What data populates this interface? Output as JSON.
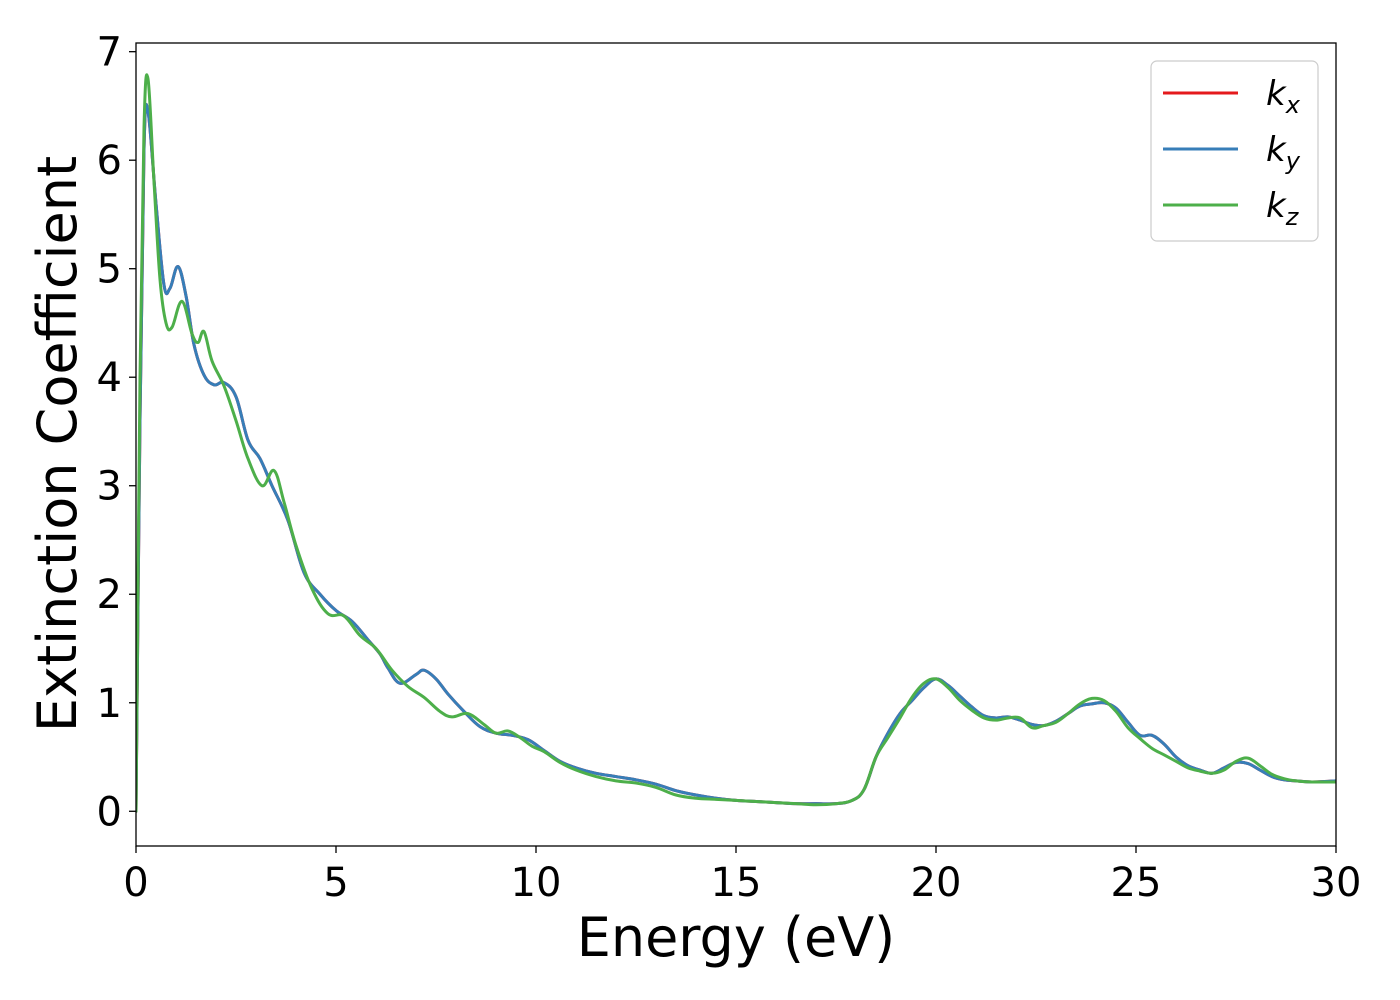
{
  "chart_data": {
    "type": "line",
    "xlabel": "Energy (eV)",
    "ylabel": "Extinction Coefficient",
    "xlim": [
      0,
      30
    ],
    "ylim": [
      -0.32,
      7.08
    ],
    "xticks": [
      "0",
      "5",
      "10",
      "15",
      "20",
      "25",
      "30"
    ],
    "yticks": [
      "0",
      "1",
      "2",
      "3",
      "4",
      "5",
      "6",
      "7"
    ],
    "grid": false,
    "legend_position": "top-right",
    "series": [
      {
        "name": "k_x",
        "legend_base": "k",
        "legend_sub": "x",
        "color": "#e41a1c",
        "x": [
          0.0,
          0.1,
          0.2,
          0.3,
          0.5,
          0.7,
          0.85,
          1.05,
          1.25,
          1.45,
          1.7,
          1.95,
          2.2,
          2.5,
          2.8,
          3.1,
          3.4,
          3.8,
          4.2,
          4.6,
          5.0,
          5.4,
          5.8,
          6.1,
          6.3,
          6.6,
          7.0,
          7.2,
          7.5,
          7.8,
          8.2,
          8.6,
          9.0,
          9.4,
          9.8,
          10.2,
          10.6,
          11.0,
          11.5,
          12.0,
          12.5,
          13.0,
          13.5,
          14.0,
          14.5,
          15.0,
          15.5,
          16.0,
          16.5,
          17.0,
          17.5,
          17.9,
          18.2,
          18.5,
          18.8,
          19.1,
          19.4,
          19.7,
          20.0,
          20.3,
          20.6,
          20.9,
          21.2,
          21.5,
          21.8,
          22.1,
          22.4,
          22.7,
          23.0,
          23.3,
          23.6,
          23.9,
          24.2,
          24.5,
          24.8,
          25.1,
          25.4,
          25.7,
          26.0,
          26.3,
          26.6,
          26.9,
          27.2,
          27.5,
          27.8,
          28.1,
          28.4,
          28.7,
          29.0,
          29.4,
          30.0
        ],
        "y": [
          0.0,
          3.6,
          6.1,
          6.45,
          5.6,
          4.85,
          4.82,
          5.02,
          4.75,
          4.3,
          4.02,
          3.93,
          3.95,
          3.82,
          3.42,
          3.25,
          3.0,
          2.68,
          2.2,
          2.0,
          1.85,
          1.75,
          1.58,
          1.45,
          1.32,
          1.18,
          1.26,
          1.3,
          1.22,
          1.08,
          0.92,
          0.78,
          0.72,
          0.7,
          0.66,
          0.56,
          0.46,
          0.4,
          0.35,
          0.32,
          0.29,
          0.25,
          0.19,
          0.15,
          0.12,
          0.1,
          0.09,
          0.08,
          0.07,
          0.07,
          0.07,
          0.1,
          0.2,
          0.5,
          0.72,
          0.9,
          1.02,
          1.14,
          1.22,
          1.16,
          1.06,
          0.96,
          0.88,
          0.86,
          0.87,
          0.84,
          0.8,
          0.79,
          0.83,
          0.9,
          0.97,
          0.99,
          1.0,
          0.95,
          0.82,
          0.7,
          0.7,
          0.62,
          0.5,
          0.42,
          0.38,
          0.35,
          0.4,
          0.45,
          0.44,
          0.38,
          0.32,
          0.29,
          0.28,
          0.27,
          0.28
        ]
      },
      {
        "name": "k_y",
        "legend_base": "k",
        "legend_sub": "y",
        "color": "#377eb8",
        "x": [
          0.0,
          0.1,
          0.2,
          0.3,
          0.5,
          0.7,
          0.85,
          1.05,
          1.25,
          1.45,
          1.7,
          1.95,
          2.2,
          2.5,
          2.8,
          3.1,
          3.4,
          3.8,
          4.2,
          4.6,
          5.0,
          5.4,
          5.8,
          6.1,
          6.3,
          6.6,
          7.0,
          7.2,
          7.5,
          7.8,
          8.2,
          8.6,
          9.0,
          9.4,
          9.8,
          10.2,
          10.6,
          11.0,
          11.5,
          12.0,
          12.5,
          13.0,
          13.5,
          14.0,
          14.5,
          15.0,
          15.5,
          16.0,
          16.5,
          17.0,
          17.5,
          17.9,
          18.2,
          18.5,
          18.8,
          19.1,
          19.4,
          19.7,
          20.0,
          20.3,
          20.6,
          20.9,
          21.2,
          21.5,
          21.8,
          22.1,
          22.4,
          22.7,
          23.0,
          23.3,
          23.6,
          23.9,
          24.2,
          24.5,
          24.8,
          25.1,
          25.4,
          25.7,
          26.0,
          26.3,
          26.6,
          26.9,
          27.2,
          27.5,
          27.8,
          28.1,
          28.4,
          28.7,
          29.0,
          29.4,
          30.0
        ],
        "y": [
          0.0,
          3.6,
          6.1,
          6.45,
          5.6,
          4.85,
          4.82,
          5.02,
          4.75,
          4.3,
          4.02,
          3.93,
          3.95,
          3.82,
          3.42,
          3.25,
          3.0,
          2.68,
          2.2,
          2.0,
          1.85,
          1.75,
          1.58,
          1.45,
          1.32,
          1.18,
          1.26,
          1.3,
          1.22,
          1.08,
          0.92,
          0.78,
          0.72,
          0.7,
          0.66,
          0.56,
          0.46,
          0.4,
          0.35,
          0.32,
          0.29,
          0.25,
          0.19,
          0.15,
          0.12,
          0.1,
          0.09,
          0.08,
          0.07,
          0.07,
          0.07,
          0.1,
          0.2,
          0.5,
          0.72,
          0.9,
          1.02,
          1.14,
          1.22,
          1.16,
          1.06,
          0.96,
          0.88,
          0.86,
          0.87,
          0.84,
          0.8,
          0.79,
          0.83,
          0.9,
          0.97,
          0.99,
          1.0,
          0.95,
          0.82,
          0.7,
          0.7,
          0.62,
          0.5,
          0.42,
          0.38,
          0.35,
          0.4,
          0.45,
          0.44,
          0.38,
          0.32,
          0.29,
          0.28,
          0.27,
          0.28
        ]
      },
      {
        "name": "k_z",
        "legend_base": "k",
        "legend_sub": "z",
        "color": "#4daf4a",
        "x": [
          0.0,
          0.1,
          0.2,
          0.3,
          0.45,
          0.6,
          0.75,
          0.9,
          1.15,
          1.4,
          1.55,
          1.7,
          1.9,
          2.2,
          2.5,
          2.8,
          3.15,
          3.45,
          3.7,
          4.0,
          4.4,
          4.8,
          5.2,
          5.6,
          6.0,
          6.4,
          6.8,
          7.2,
          7.6,
          7.9,
          8.3,
          8.7,
          9.0,
          9.3,
          9.6,
          9.9,
          10.2,
          10.6,
          11.0,
          11.5,
          12.0,
          12.5,
          13.0,
          13.5,
          14.0,
          14.5,
          15.0,
          15.5,
          16.0,
          16.5,
          17.0,
          17.5,
          17.9,
          18.2,
          18.5,
          18.8,
          19.1,
          19.4,
          19.7,
          20.0,
          20.3,
          20.6,
          20.9,
          21.2,
          21.5,
          21.8,
          22.1,
          22.4,
          22.7,
          23.0,
          23.3,
          23.6,
          23.9,
          24.2,
          24.5,
          24.8,
          25.1,
          25.4,
          25.7,
          26.0,
          26.3,
          26.6,
          26.9,
          27.2,
          27.5,
          27.8,
          28.1,
          28.4,
          28.7,
          29.0,
          29.4,
          30.0
        ],
        "y": [
          0.0,
          4.0,
          6.3,
          6.75,
          5.8,
          4.9,
          4.5,
          4.46,
          4.7,
          4.4,
          4.32,
          4.42,
          4.15,
          3.92,
          3.6,
          3.25,
          3.0,
          3.14,
          2.85,
          2.45,
          2.05,
          1.82,
          1.8,
          1.62,
          1.5,
          1.3,
          1.15,
          1.05,
          0.92,
          0.87,
          0.9,
          0.8,
          0.72,
          0.74,
          0.68,
          0.6,
          0.55,
          0.45,
          0.38,
          0.32,
          0.28,
          0.26,
          0.22,
          0.15,
          0.12,
          0.11,
          0.1,
          0.09,
          0.08,
          0.07,
          0.06,
          0.07,
          0.1,
          0.2,
          0.5,
          0.68,
          0.86,
          1.05,
          1.18,
          1.22,
          1.14,
          1.02,
          0.93,
          0.86,
          0.84,
          0.86,
          0.86,
          0.77,
          0.79,
          0.82,
          0.9,
          0.99,
          1.04,
          1.02,
          0.92,
          0.77,
          0.67,
          0.58,
          0.52,
          0.46,
          0.4,
          0.37,
          0.35,
          0.38,
          0.46,
          0.49,
          0.42,
          0.34,
          0.3,
          0.28,
          0.27,
          0.27
        ]
      }
    ]
  }
}
